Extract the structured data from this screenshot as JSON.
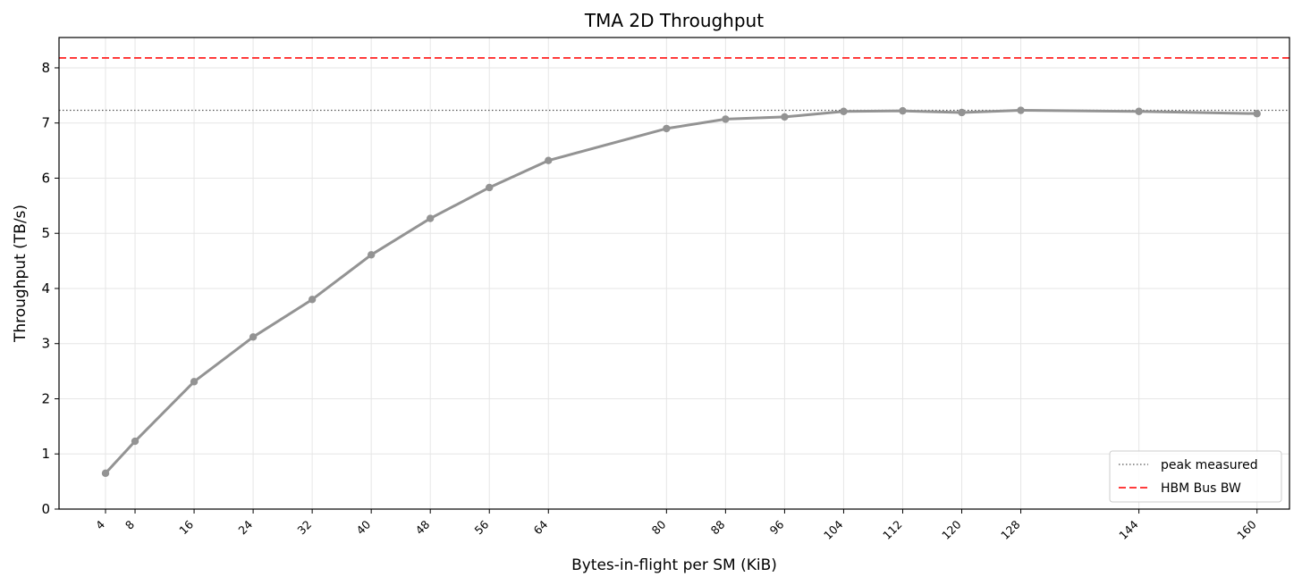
{
  "chart_data": {
    "type": "line",
    "title": "TMA 2D Throughput",
    "xlabel": "Bytes-in-flight per SM (KiB)",
    "ylabel": "Throughput (TB/s)",
    "xlim": [
      -2.3,
      164.4
    ],
    "ylim": [
      0,
      8.55
    ],
    "grid": true,
    "legend_position": "lower-right",
    "xticks": [
      4,
      8,
      16,
      24,
      32,
      40,
      48,
      56,
      64,
      80,
      88,
      96,
      104,
      112,
      120,
      128,
      144,
      160
    ],
    "yticks": [
      0,
      1,
      2,
      3,
      4,
      5,
      6,
      7,
      8
    ],
    "series": [
      {
        "color": "#939393",
        "x": [
          4,
          8,
          16,
          24,
          32,
          40,
          48,
          56,
          64,
          80,
          88,
          96,
          104,
          112,
          120,
          128,
          144,
          160
        ],
        "y": [
          0.65,
          1.23,
          2.31,
          3.12,
          3.8,
          4.61,
          5.27,
          5.83,
          6.32,
          6.9,
          7.07,
          7.11,
          7.21,
          7.22,
          7.19,
          7.23,
          7.21,
          7.17
        ]
      }
    ],
    "reference_lines": [
      {
        "name": "peak measured",
        "y": 7.23,
        "style": "dotted",
        "color": "#555555"
      },
      {
        "name": "HBM Bus BW",
        "y": 8.18,
        "style": "dashed",
        "color": "#ff2020"
      }
    ]
  }
}
